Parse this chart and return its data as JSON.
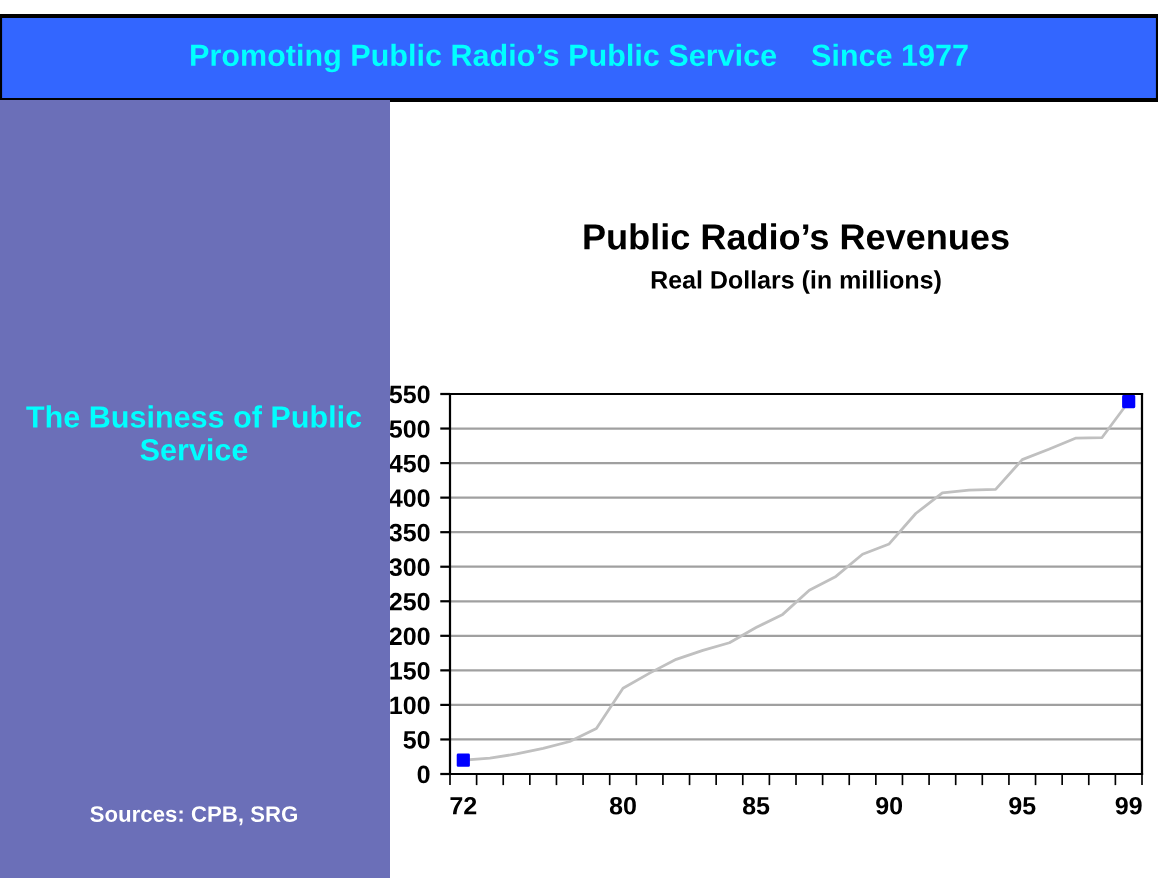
{
  "chart_data": {
    "type": "line",
    "title": "Public Radio’s Revenues",
    "subtitle": "Real Dollars (in millions)",
    "categories": [
      "72",
      null,
      null,
      null,
      null,
      null,
      "80",
      null,
      null,
      null,
      null,
      "85",
      null,
      null,
      null,
      null,
      "90",
      null,
      null,
      null,
      null,
      "95",
      null,
      null,
      null,
      "99"
    ],
    "series": [
      {
        "color": "#c0c0c0",
        "marker": "none",
        "values": [
          20,
          23,
          29,
          37,
          47,
          66,
          124,
          146,
          166,
          179,
          190,
          212,
          231,
          266,
          286,
          318,
          333,
          377,
          407,
          411,
          412,
          455,
          470,
          486,
          487,
          539
        ]
      },
      {
        "type": "scatter",
        "color": "#0000ff",
        "marker": "square",
        "x": [
          "72",
          "99"
        ],
        "values": [
          20,
          539
        ]
      }
    ],
    "ylim": [
      0,
      550
    ],
    "yticks": [
      0,
      50,
      100,
      150,
      200,
      250,
      300,
      350,
      400,
      450,
      500,
      550
    ],
    "grid": "y",
    "legend": false,
    "annotations": [
      "Promoting Public Radio’s Public Service    Since 1977",
      "The Business of Public Service",
      "Sources: CPB, SRG"
    ]
  }
}
